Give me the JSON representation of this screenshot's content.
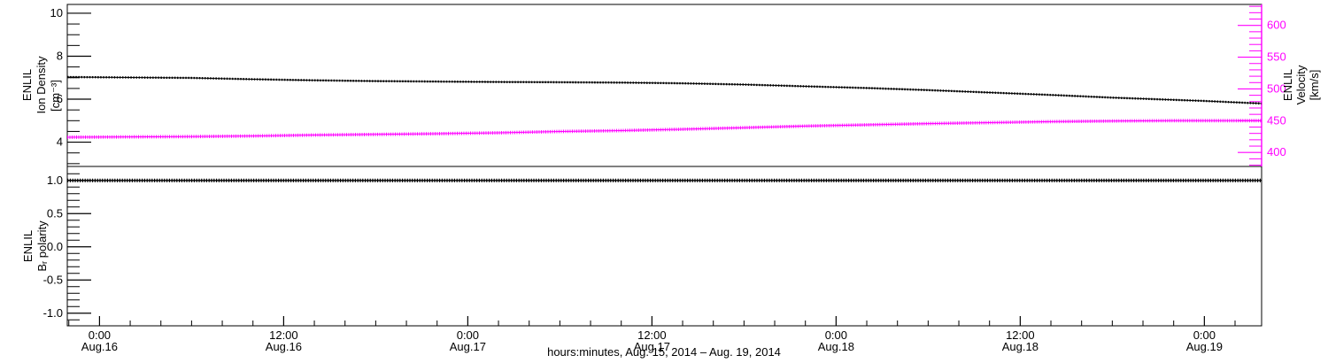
{
  "labels": {
    "left_top": {
      "lines": [
        "ENLIL",
        "Ion Density",
        "[cm⁻³]"
      ]
    },
    "left_bottom": {
      "lines": [
        "ENLIL",
        "Bᵣ polarity"
      ]
    },
    "right_top": {
      "lines": [
        "ENLIL",
        "Velocity",
        "[km/s]"
      ]
    },
    "x_title": "hours:minutes, Aug. 15, 2014 – Aug. 19, 2014"
  },
  "colors": {
    "background": "#ffffff",
    "axis": "#000000",
    "ion_density": "#000000",
    "velocity": "#ff00ff",
    "br_polarity": "#000000"
  },
  "chart_data": [
    {
      "type": "line",
      "panel": "ion-density-and-velocity",
      "x_unit": "hours since Aug 15, 2014 00:00",
      "y_left": {
        "label": "ENLIL Ion Density [cm⁻³]",
        "range": [
          2.87,
          10.41
        ],
        "major_ticks": [
          {
            "value": 10,
            "label": "10"
          },
          {
            "value": 8,
            "label": "8"
          },
          {
            "value": 6,
            "label": "6"
          },
          {
            "value": 4,
            "label": "4"
          }
        ],
        "minor_step": 0.5,
        "color": "#000000"
      },
      "y_right": {
        "label": "ENLIL Velocity [km/s]",
        "range": [
          378,
          633
        ],
        "major_ticks": [
          {
            "value": 600,
            "label": "600"
          },
          {
            "value": 550,
            "label": "550"
          },
          {
            "value": 500,
            "label": "500"
          },
          {
            "value": 450,
            "label": "450"
          },
          {
            "value": 400,
            "label": "400"
          }
        ],
        "minor_step": 10,
        "color": "#ff00ff"
      },
      "series": [
        {
          "name": "ion-density",
          "axis": "left",
          "color": "#000000",
          "points": [
            [
              21.9,
              7.03
            ],
            [
              26,
              7.01
            ],
            [
              30,
              6.99
            ],
            [
              34,
              6.93
            ],
            [
              38,
              6.88
            ],
            [
              42,
              6.84
            ],
            [
              46,
              6.82
            ],
            [
              50,
              6.8
            ],
            [
              54,
              6.79
            ],
            [
              58,
              6.77
            ],
            [
              62,
              6.74
            ],
            [
              66,
              6.68
            ],
            [
              70,
              6.6
            ],
            [
              74,
              6.52
            ],
            [
              78,
              6.42
            ],
            [
              82,
              6.31
            ],
            [
              86,
              6.2
            ],
            [
              90,
              6.07
            ],
            [
              94,
              5.97
            ],
            [
              96,
              5.92
            ],
            [
              99.7,
              5.8
            ]
          ]
        },
        {
          "name": "velocity",
          "axis": "right",
          "color": "#ff00ff",
          "points": [
            [
              21.9,
              424
            ],
            [
              26,
              424.5
            ],
            [
              30,
              425
            ],
            [
              34,
              426
            ],
            [
              38,
              427.5
            ],
            [
              42,
              428.5
            ],
            [
              46,
              429.5
            ],
            [
              50,
              431
            ],
            [
              54,
              433
            ],
            [
              58,
              434.5
            ],
            [
              62,
              436.5
            ],
            [
              66,
              439
            ],
            [
              70,
              441.5
            ],
            [
              74,
              443.5
            ],
            [
              78,
              445.5
            ],
            [
              82,
              447
            ],
            [
              86,
              448.5
            ],
            [
              90,
              449.5
            ],
            [
              94,
              450
            ],
            [
              99.7,
              450
            ]
          ]
        }
      ]
    },
    {
      "type": "line",
      "panel": "br-polarity",
      "x_unit": "hours since Aug 15, 2014 00:00",
      "y_left": {
        "label": "ENLIL Bᵣ polarity",
        "range": [
          -1.19,
          1.21
        ],
        "major_ticks": [
          {
            "value": 1.0,
            "label": "1.0"
          },
          {
            "value": 0.5,
            "label": "0.5"
          },
          {
            "value": 0.0,
            "label": "0.0"
          },
          {
            "value": -0.5,
            "label": "-0.5"
          },
          {
            "value": -1.0,
            "label": "-1.0"
          }
        ],
        "minor_step": 0.1,
        "color": "#000000"
      },
      "series": [
        {
          "name": "br-polarity",
          "axis": "left",
          "color": "#000000",
          "points": [
            [
              21.9,
              1.0
            ],
            [
              40,
              1.0
            ],
            [
              60,
              1.0
            ],
            [
              80,
              1.0
            ],
            [
              99.7,
              1.0
            ]
          ]
        }
      ]
    }
  ],
  "x_axis": {
    "title": "hours:minutes, Aug. 15, 2014 – Aug. 19, 2014",
    "range_hours": [
      21.9,
      99.73
    ],
    "minor_step_hours": 2,
    "major_ticks": [
      {
        "t": 24,
        "time": "0:00",
        "date": "Aug.16"
      },
      {
        "t": 36,
        "time": "12:00",
        "date": "Aug.16"
      },
      {
        "t": 48,
        "time": "0:00",
        "date": "Aug.17"
      },
      {
        "t": 60,
        "time": "12:00",
        "date": "Aug.17"
      },
      {
        "t": 72,
        "time": "0:00",
        "date": "Aug.18"
      },
      {
        "t": 84,
        "time": "12:00",
        "date": "Aug.18"
      },
      {
        "t": 96,
        "time": "0:00",
        "date": "Aug.19"
      }
    ]
  }
}
